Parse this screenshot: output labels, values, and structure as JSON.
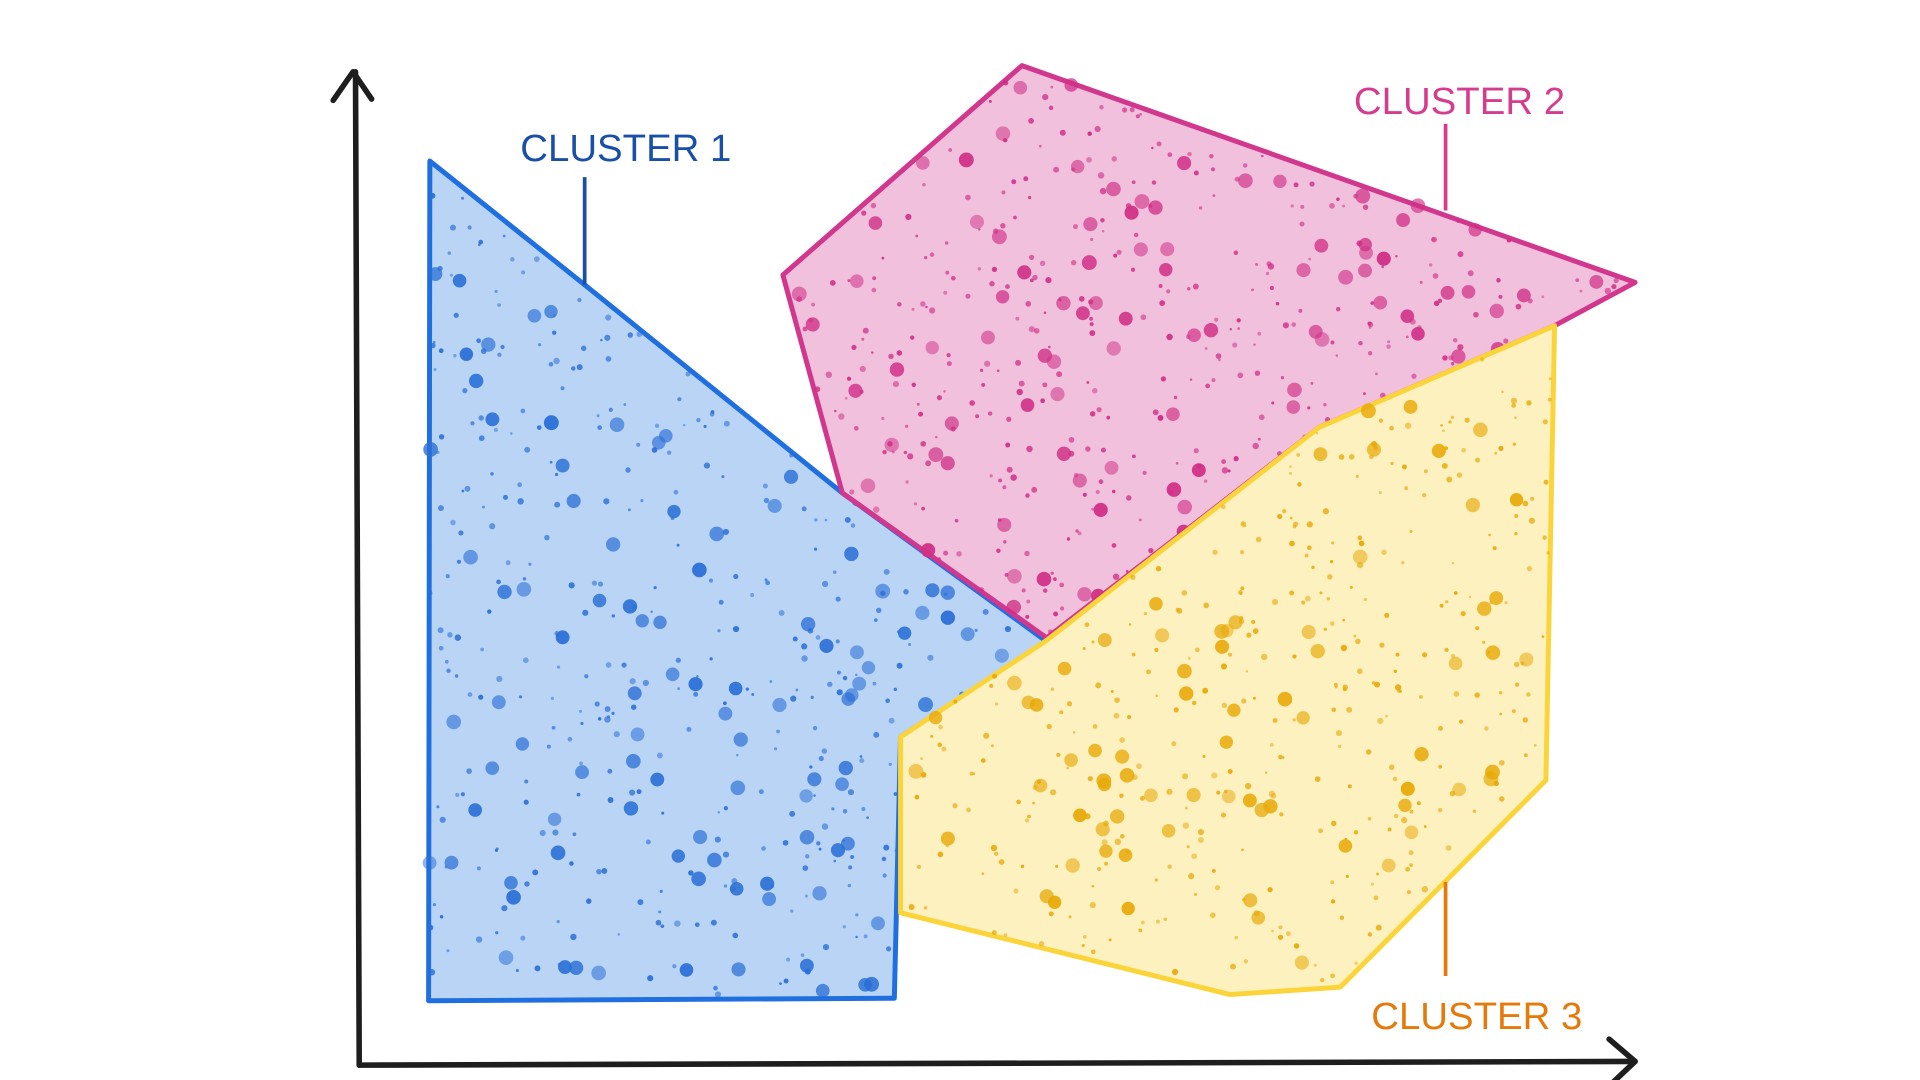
{
  "clusters": [
    {
      "label": "CLUSTER 1",
      "fill": "#b9d4f5",
      "stroke": "#1f6fe0",
      "dot": "#2a6fd6",
      "label_color": "#1a4fa8"
    },
    {
      "label": "CLUSTER 2",
      "fill": "#f0c0dc",
      "stroke": "#d2378e",
      "dot": "#d02f86",
      "label_color": "#d63c8e"
    },
    {
      "label": "CLUSTER 3",
      "fill": "#fcf1bf",
      "stroke": "#fbd43a",
      "dot": "#e8a908",
      "label_color": "#e57a0a"
    }
  ],
  "axis_color": "#1e1e1e"
}
